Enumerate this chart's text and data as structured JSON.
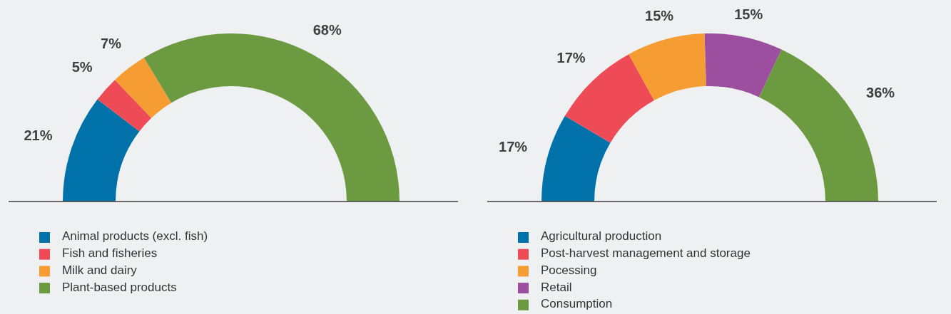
{
  "chart_data": [
    {
      "type": "donut",
      "categories": [
        "Animal products (excl. fish)",
        "Fish and fisheries",
        "Milk and dairy",
        "Plant-based products"
      ],
      "values": [
        21,
        5,
        7,
        68
      ],
      "colors": [
        "#0072a9",
        "#ef4b57",
        "#f59d32",
        "#6c9a40"
      ],
      "value_labels": [
        "21%",
        "5%",
        "7%",
        "68%"
      ],
      "legend": "bottom"
    },
    {
      "type": "donut",
      "categories": [
        "Agricultural production",
        "Post-harvest management and storage",
        "Pocessing",
        "Retail",
        "Consumption"
      ],
      "values": [
        17,
        17,
        15,
        15,
        36
      ],
      "colors": [
        "#0072a9",
        "#ef4b57",
        "#f59d32",
        "#9b4f9e",
        "#6c9a40"
      ],
      "value_labels": [
        "17%",
        "17%",
        "15%",
        "15%",
        "36%"
      ],
      "legend": "bottom"
    }
  ]
}
